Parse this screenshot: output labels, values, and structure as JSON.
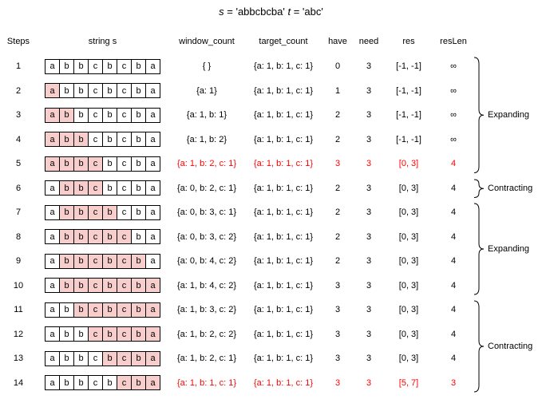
{
  "title": {
    "s_var": "s",
    "s_rest": "= 'abbcbcba'",
    "t_var": "t",
    "t_rest": "= 'abc'"
  },
  "headers": {
    "steps": "Steps",
    "string": "string s",
    "window": "window_count",
    "target": "target_count",
    "have": "have",
    "need": "need",
    "res": "res",
    "reslen": "resLen"
  },
  "string_chars": [
    "a",
    "b",
    "b",
    "c",
    "b",
    "c",
    "b",
    "a"
  ],
  "rows": [
    {
      "step": "1",
      "hl": [
        -1,
        -1
      ],
      "window": "{ }",
      "target": "{a: 1, b: 1, c: 1}",
      "have": "0",
      "need": "3",
      "res": "[-1, -1]",
      "resLen": "∞",
      "red": false
    },
    {
      "step": "2",
      "hl": [
        0,
        0
      ],
      "window": "{a: 1}",
      "target": "{a: 1, b: 1, c: 1}",
      "have": "1",
      "need": "3",
      "res": "[-1, -1]",
      "resLen": "∞",
      "red": false
    },
    {
      "step": "3",
      "hl": [
        0,
        1
      ],
      "window": "{a: 1, b: 1}",
      "target": "{a: 1, b: 1, c: 1}",
      "have": "2",
      "need": "3",
      "res": "[-1, -1]",
      "resLen": "∞",
      "red": false
    },
    {
      "step": "4",
      "hl": [
        0,
        2
      ],
      "window": "{a: 1, b: 2}",
      "target": "{a: 1, b: 1, c: 1}",
      "have": "2",
      "need": "3",
      "res": "[-1, -1]",
      "resLen": "∞",
      "red": false
    },
    {
      "step": "5",
      "hl": [
        0,
        3
      ],
      "window": "{a: 1, b: 2, c: 1}",
      "target": "{a: 1, b: 1, c: 1}",
      "have": "3",
      "need": "3",
      "res": "[0, 3]",
      "resLen": "4",
      "red": true
    },
    {
      "step": "6",
      "hl": [
        1,
        3
      ],
      "window": "{a: 0, b: 2, c: 1}",
      "target": "{a: 1, b: 1, c: 1}",
      "have": "2",
      "need": "3",
      "res": "[0, 3]",
      "resLen": "4",
      "red": false
    },
    {
      "step": "7",
      "hl": [
        1,
        4
      ],
      "window": "{a: 0, b: 3, c: 1}",
      "target": "{a: 1, b: 1, c: 1}",
      "have": "2",
      "need": "3",
      "res": "[0, 3]",
      "resLen": "4",
      "red": false
    },
    {
      "step": "8",
      "hl": [
        1,
        5
      ],
      "window": "{a: 0, b: 3, c: 2}",
      "target": "{a: 1, b: 1, c: 1}",
      "have": "2",
      "need": "3",
      "res": "[0, 3]",
      "resLen": "4",
      "red": false
    },
    {
      "step": "9",
      "hl": [
        1,
        6
      ],
      "window": "{a: 0, b: 4, c: 2}",
      "target": "{a: 1, b: 1, c: 1}",
      "have": "2",
      "need": "3",
      "res": "[0, 3]",
      "resLen": "4",
      "red": false
    },
    {
      "step": "10",
      "hl": [
        1,
        7
      ],
      "window": "{a: 1, b: 4, c: 2}",
      "target": "{a: 1, b: 1, c: 1}",
      "have": "3",
      "need": "3",
      "res": "[0, 3]",
      "resLen": "4",
      "red": false
    },
    {
      "step": "11",
      "hl": [
        2,
        7
      ],
      "window": "{a: 1, b: 3, c: 2}",
      "target": "{a: 1, b: 1, c: 1}",
      "have": "3",
      "need": "3",
      "res": "[0, 3]",
      "resLen": "4",
      "red": false
    },
    {
      "step": "12",
      "hl": [
        3,
        7
      ],
      "window": "{a: 1, b: 2, c: 2}",
      "target": "{a: 1, b: 1, c: 1}",
      "have": "3",
      "need": "3",
      "res": "[0, 3]",
      "resLen": "4",
      "red": false
    },
    {
      "step": "13",
      "hl": [
        4,
        7
      ],
      "window": "{a: 1, b: 2, c: 1}",
      "target": "{a: 1, b: 1, c: 1}",
      "have": "3",
      "need": "3",
      "res": "[0, 3]",
      "resLen": "4",
      "red": false
    },
    {
      "step": "14",
      "hl": [
        5,
        7
      ],
      "window": "{a: 1, b: 1, c: 1}",
      "target": "{a: 1, b: 1, c: 1}",
      "have": "3",
      "need": "3",
      "res": "[5, 7]",
      "resLen": "3",
      "red": true
    }
  ],
  "phases": [
    {
      "label": "Expanding",
      "start": 1,
      "end": 5
    },
    {
      "label": "Contracting",
      "start": 6,
      "end": 6
    },
    {
      "label": "Expanding",
      "start": 7,
      "end": 10
    },
    {
      "label": "Contracting",
      "start": 11,
      "end": 14
    }
  ],
  "colors": {
    "highlight": "#f8cecc",
    "alert": "#ff0000",
    "border": "#000000"
  }
}
